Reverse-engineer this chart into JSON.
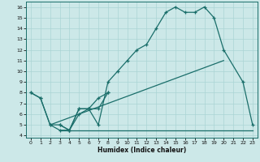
{
  "xlabel": "Humidex (Indice chaleur)",
  "bg_color": "#cce8e8",
  "line_color": "#1a6e6a",
  "grid_color": "#aad4d4",
  "xlim": [
    -0.5,
    23.5
  ],
  "ylim": [
    3.8,
    16.5
  ],
  "yticks": [
    4,
    5,
    6,
    7,
    8,
    9,
    10,
    11,
    12,
    13,
    14,
    15,
    16
  ],
  "xticks": [
    0,
    1,
    2,
    3,
    4,
    5,
    6,
    7,
    8,
    9,
    10,
    11,
    12,
    13,
    14,
    15,
    16,
    17,
    18,
    19,
    20,
    21,
    22,
    23
  ],
  "curve_main_x": [
    0,
    1,
    2,
    3,
    4,
    5,
    6,
    7,
    8,
    9,
    10,
    11,
    12,
    13,
    14,
    15,
    16,
    17,
    18,
    19,
    20,
    22,
    23
  ],
  "curve_main_y": [
    8.0,
    7.5,
    5.0,
    4.5,
    4.5,
    6.5,
    6.5,
    5.0,
    9.0,
    10.0,
    11.0,
    12.0,
    12.5,
    14.0,
    15.5,
    16.0,
    15.5,
    15.5,
    16.0,
    15.0,
    12.0,
    9.0,
    5.0
  ],
  "curve_zigzag_x": [
    3,
    4,
    5,
    6,
    7,
    8
  ],
  "curve_zigzag_y": [
    5.0,
    4.5,
    6.5,
    6.5,
    6.5,
    8.0
  ],
  "curve_small_x": [
    0,
    1,
    2,
    3,
    4,
    5,
    6,
    7,
    8
  ],
  "curve_small_y": [
    8.0,
    7.5,
    5.0,
    5.0,
    4.5,
    6.0,
    6.5,
    7.5,
    8.0
  ],
  "diag_line_x": [
    2,
    20
  ],
  "diag_line_y": [
    5.0,
    11.0
  ],
  "flat_line_x": [
    3,
    23
  ],
  "flat_line_y": [
    4.5,
    4.5
  ]
}
